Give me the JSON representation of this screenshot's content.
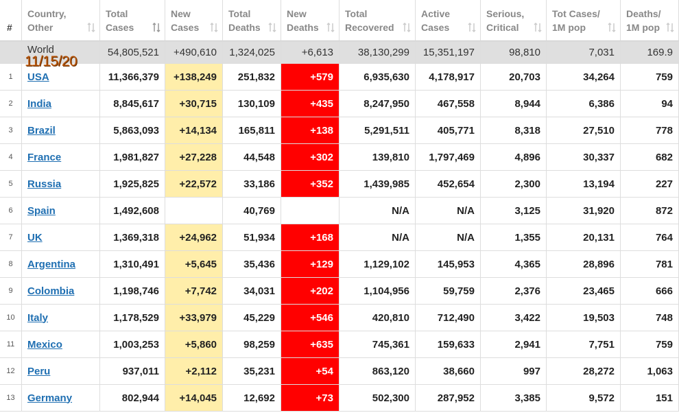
{
  "header": {
    "columns": [
      [
        "#"
      ],
      [
        "Country,",
        "Other"
      ],
      [
        "Total",
        "Cases"
      ],
      [
        "New",
        "Cases"
      ],
      [
        "Total",
        "Deaths"
      ],
      [
        "New",
        "Deaths"
      ],
      [
        "Total",
        "Recovered"
      ],
      [
        "Active",
        "Cases"
      ],
      [
        "Serious,",
        "Critical"
      ],
      [
        "Tot Cases/",
        "1M pop"
      ],
      [
        "Deaths/",
        "1M pop"
      ]
    ]
  },
  "world": {
    "cells": [
      "World",
      "54,805,521",
      "+490,610",
      "1,324,025",
      "+6,613",
      "38,130,299",
      "15,351,197",
      "98,810",
      "7,031",
      "169.9"
    ]
  },
  "overlay_date": "11/15/20",
  "rows": [
    {
      "cells": [
        "1",
        "USA",
        "11,366,379",
        "+138,249",
        "251,832",
        "+579",
        "6,935,630",
        "4,178,917",
        "20,703",
        "34,264",
        "759"
      ]
    },
    {
      "cells": [
        "2",
        "India",
        "8,845,617",
        "+30,715",
        "130,109",
        "+435",
        "8,247,950",
        "467,558",
        "8,944",
        "6,386",
        "94"
      ]
    },
    {
      "cells": [
        "3",
        "Brazil",
        "5,863,093",
        "+14,134",
        "165,811",
        "+138",
        "5,291,511",
        "405,771",
        "8,318",
        "27,510",
        "778"
      ]
    },
    {
      "cells": [
        "4",
        "France",
        "1,981,827",
        "+27,228",
        "44,548",
        "+302",
        "139,810",
        "1,797,469",
        "4,896",
        "30,337",
        "682"
      ]
    },
    {
      "cells": [
        "5",
        "Russia",
        "1,925,825",
        "+22,572",
        "33,186",
        "+352",
        "1,439,985",
        "452,654",
        "2,300",
        "13,194",
        "227"
      ]
    },
    {
      "cells": [
        "6",
        "Spain",
        "1,492,608",
        null,
        "40,769",
        null,
        "N/A",
        "N/A",
        "3,125",
        "31,920",
        "872"
      ]
    },
    {
      "cells": [
        "7",
        "UK",
        "1,369,318",
        "+24,962",
        "51,934",
        "+168",
        "N/A",
        "N/A",
        "1,355",
        "20,131",
        "764"
      ]
    },
    {
      "cells": [
        "8",
        "Argentina",
        "1,310,491",
        "+5,645",
        "35,436",
        "+129",
        "1,129,102",
        "145,953",
        "4,365",
        "28,896",
        "781"
      ]
    },
    {
      "cells": [
        "9",
        "Colombia",
        "1,198,746",
        "+7,742",
        "34,031",
        "+202",
        "1,104,956",
        "59,759",
        "2,376",
        "23,465",
        "666"
      ]
    },
    {
      "cells": [
        "10",
        "Italy",
        "1,178,529",
        "+33,979",
        "45,229",
        "+546",
        "420,810",
        "712,490",
        "3,422",
        "19,503",
        "748"
      ]
    },
    {
      "cells": [
        "11",
        "Mexico",
        "1,003,253",
        "+5,860",
        "98,259",
        "+635",
        "745,361",
        "159,633",
        "2,941",
        "7,751",
        "759"
      ]
    },
    {
      "cells": [
        "12",
        "Peru",
        "937,011",
        "+2,112",
        "35,231",
        "+54",
        "863,120",
        "38,660",
        "997",
        "28,272",
        "1,063"
      ]
    },
    {
      "cells": [
        "13",
        "Germany",
        "802,944",
        "+14,045",
        "12,692",
        "+73",
        "502,300",
        "287,952",
        "3,385",
        "9,572",
        "151"
      ]
    }
  ]
}
